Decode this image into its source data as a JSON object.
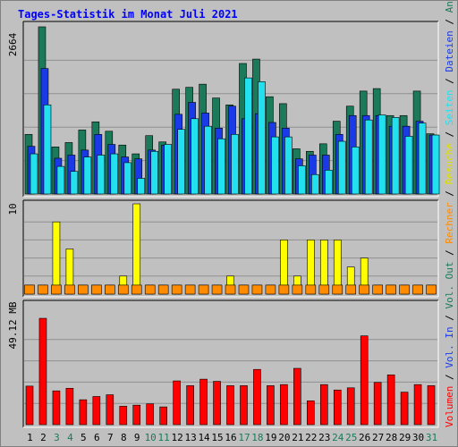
{
  "chart_data": {
    "type": "bar",
    "title": "Tages-Statistik im Monat Juli 2021",
    "categories": [
      "1",
      "2",
      "3",
      "4",
      "5",
      "6",
      "7",
      "8",
      "9",
      "10",
      "11",
      "12",
      "13",
      "14",
      "15",
      "16",
      "17",
      "18",
      "19",
      "20",
      "21",
      "22",
      "23",
      "24",
      "25",
      "26",
      "27",
      "28",
      "29",
      "30",
      "31"
    ],
    "weekend_days": [
      "3",
      "4",
      "10",
      "11",
      "17",
      "18",
      "24",
      "25",
      "31"
    ],
    "panels": [
      {
        "name": "requests",
        "ymax_label": "2664",
        "ylim": [
          0,
          2664
        ],
        "series": [
          {
            "name": "Anfragen",
            "color": "#1a7a5a",
            "values": [
              950,
              2664,
              750,
              820,
              1020,
              1150,
              1000,
              780,
              640,
              930,
              830,
              1670,
              1700,
              1750,
              1530,
              1420,
              2080,
              2150,
              1550,
              1440,
              720,
              680,
              800,
              1160,
              1400,
              1640,
              1680,
              1250,
              1250,
              1640,
              960
            ]
          },
          {
            "name": "Dateien",
            "color": "#1a3ae8",
            "values": [
              760,
              2000,
              570,
              620,
              700,
              950,
              790,
              590,
              560,
              700,
              780,
              1270,
              1460,
              1290,
              1050,
              1400,
              1200,
              1280,
              1140,
              1050,
              560,
              620,
              620,
              950,
              1250,
              1250,
              1250,
              1080,
              1080,
              1160,
              940
            ]
          },
          {
            "name": "Seiten",
            "color": "#22e0ee",
            "values": [
              640,
              1420,
              440,
              360,
              590,
              620,
              640,
              500,
              250,
              680,
              790,
              1030,
              1200,
              1080,
              880,
              950,
              1850,
              1790,
              910,
              910,
              450,
              310,
              380,
              840,
              750,
              1180,
              1260,
              1220,
              920,
              1130,
              940
            ]
          }
        ]
      },
      {
        "name": "visits",
        "ymax_label": "10",
        "ylim": [
          0,
          10
        ],
        "series": [
          {
            "name": "Besuche",
            "color": "#ffff00",
            "values": [
              1,
              1,
              8,
              5,
              1,
              1,
              1,
              2,
              10,
              1,
              1,
              1,
              1,
              1,
              1,
              2,
              1,
              1,
              1,
              6,
              2,
              6,
              6,
              6,
              3,
              4,
              1,
              1,
              1,
              1,
              1
            ]
          },
          {
            "name": "Rechner",
            "color": "#ff8c00",
            "values": [
              1,
              1,
              1,
              1,
              1,
              1,
              1,
              1,
              1,
              1,
              1,
              1,
              1,
              1,
              1,
              1,
              1,
              1,
              1,
              1,
              1,
              1,
              1,
              1,
              1,
              1,
              1,
              1,
              1,
              1,
              1
            ]
          }
        ]
      },
      {
        "name": "volume",
        "ymax_label": "49.12 MB",
        "ylim": [
          0,
          49.12
        ],
        "series": [
          {
            "name": "Volumen",
            "color": "#ff0000",
            "values": [
              17.8,
              49.1,
              15.6,
              16.8,
              11.5,
              13.0,
              13.8,
              8.5,
              9.0,
              9.6,
              8.2,
              20.2,
              18.0,
              21.0,
              20.0,
              18.0,
              18.0,
              25.5,
              18.0,
              18.5,
              26.0,
              11.0,
              18.5,
              16.0,
              17.0,
              41.0,
              19.5,
              23.0,
              15.0,
              18.5,
              18.0
            ]
          }
        ]
      }
    ],
    "right_legend": [
      {
        "text": "Volumen",
        "color": "#ff0000"
      },
      {
        "text": " / ",
        "color": "#000000"
      },
      {
        "text": "Vol. In",
        "color": "#1a3ae8"
      },
      {
        "text": " / ",
        "color": "#000000"
      },
      {
        "text": "Vol. Out",
        "color": "#1a7a5a"
      },
      {
        "text": " / ",
        "color": "#000000"
      },
      {
        "text": "Rechner",
        "color": "#ff8c00"
      },
      {
        "text": " / ",
        "color": "#000000"
      },
      {
        "text": "Besuche",
        "color": "#e0e000"
      },
      {
        "text": " / ",
        "color": "#000000"
      },
      {
        "text": "Seiten",
        "color": "#22e0ee"
      },
      {
        "text": " / ",
        "color": "#000000"
      },
      {
        "text": "Dateien",
        "color": "#1a3ae8"
      },
      {
        "text": " / ",
        "color": "#000000"
      },
      {
        "text": "Anfragen",
        "color": "#1a7a5a"
      }
    ],
    "colors": {
      "background": "#c0c0c0",
      "plot_background": "#c0c0c0",
      "title": "#0000ff",
      "weekday_label": "#000000",
      "weekend_label": "#1a7a5a",
      "grid": "#909090"
    }
  }
}
